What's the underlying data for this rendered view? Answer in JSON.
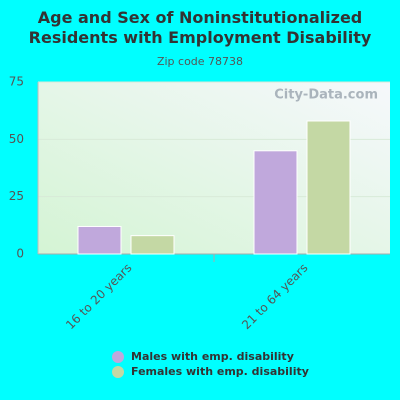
{
  "chart_data": {
    "type": "bar",
    "title": "Age and Sex of Noninstitutionalized Residents with Employment Disability",
    "subtitle": "Zip code 78738",
    "watermark": "City-Data.com",
    "categories": [
      "16 to 20 years",
      "21 to 64 years"
    ],
    "series": [
      {
        "name": "Males with emp. disability",
        "color": "#c0a8dc",
        "values": [
          12,
          45
        ]
      },
      {
        "name": "Females with emp. disability",
        "color": "#c4d8a4",
        "values": [
          8,
          58
        ]
      }
    ],
    "ylim": [
      0,
      75
    ],
    "yticks": [
      0,
      25,
      50,
      75
    ],
    "grid": true
  }
}
